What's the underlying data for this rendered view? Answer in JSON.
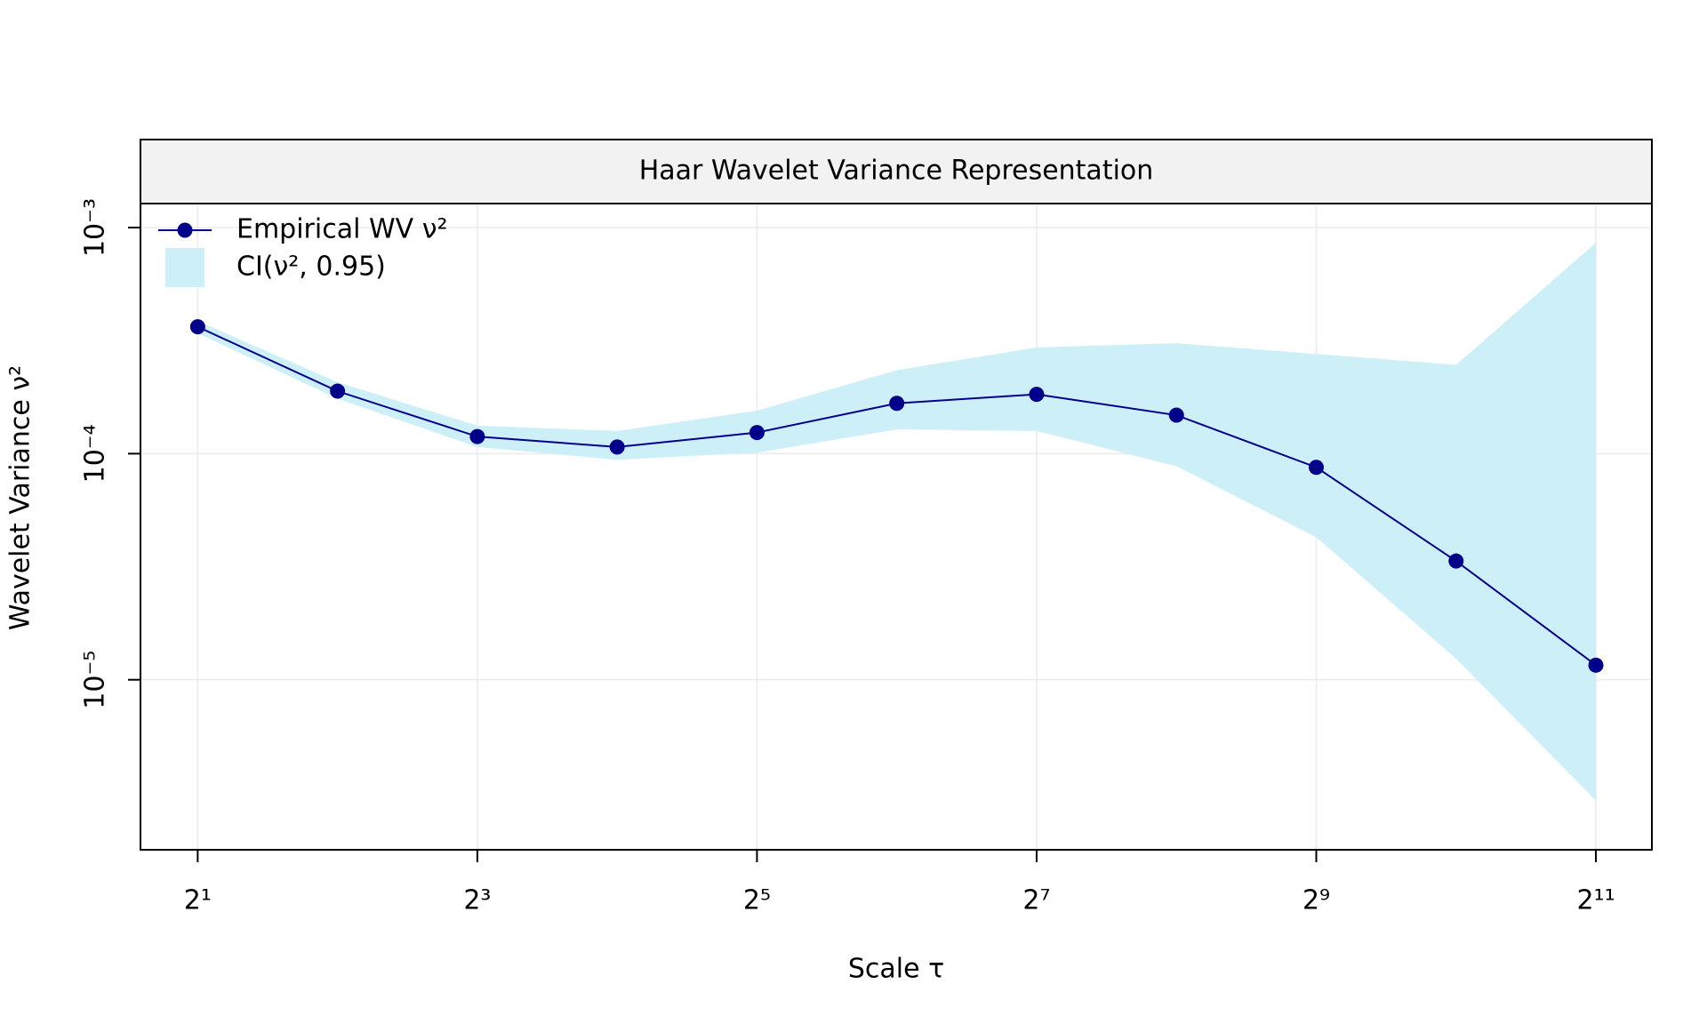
{
  "chart_data": {
    "type": "line",
    "title": "Haar Wavelet Variance Representation",
    "x_label": "Scale τ",
    "y_label": "Wavelet Variance ν²",
    "x": [
      2,
      4,
      8,
      16,
      32,
      64,
      128,
      256,
      512,
      1024,
      2048
    ],
    "series": [
      {
        "name": "Empirical WV ν²",
        "color": "#00008b",
        "values": [
          0.000364,
          0.000189,
          0.000119,
          0.000107,
          0.000124,
          0.000167,
          0.000183,
          0.000148,
          8.7e-05,
          3.35e-05,
          1.16e-05
        ]
      }
    ],
    "band": {
      "name": "CI(ν², 0.95)",
      "color": "#cdeff7",
      "upper": [
        0.000386,
        0.000207,
        0.000133,
        0.000126,
        0.000155,
        0.000234,
        0.000295,
        0.000308,
        0.000276,
        0.000247,
        0.000857
      ],
      "lower": [
        0.000341,
        0.000175,
        0.000107,
        9.4e-05,
        0.000101,
        0.000128,
        0.000126,
        8.8e-05,
        4.27e-05,
        1.24e-05,
        2.92e-06
      ]
    },
    "xlog": 2,
    "ylog": 10,
    "xlim": [
      1.506,
      2703
    ],
    "ylim": [
      1.77e-06,
      0.001277
    ],
    "xticks": [
      {
        "value": 2,
        "label": "2¹"
      },
      {
        "value": 8,
        "label": "2³"
      },
      {
        "value": 32,
        "label": "2⁵"
      },
      {
        "value": 128,
        "label": "2⁷"
      },
      {
        "value": 512,
        "label": "2⁹"
      },
      {
        "value": 2048,
        "label": "2¹¹"
      }
    ],
    "yticks": [
      {
        "value": 1e-05,
        "label": "10⁻⁵"
      },
      {
        "value": 0.0001,
        "label": "10⁻⁴"
      },
      {
        "value": 0.001,
        "label": "10⁻³"
      }
    ],
    "grid": true,
    "legend": "topleft"
  }
}
